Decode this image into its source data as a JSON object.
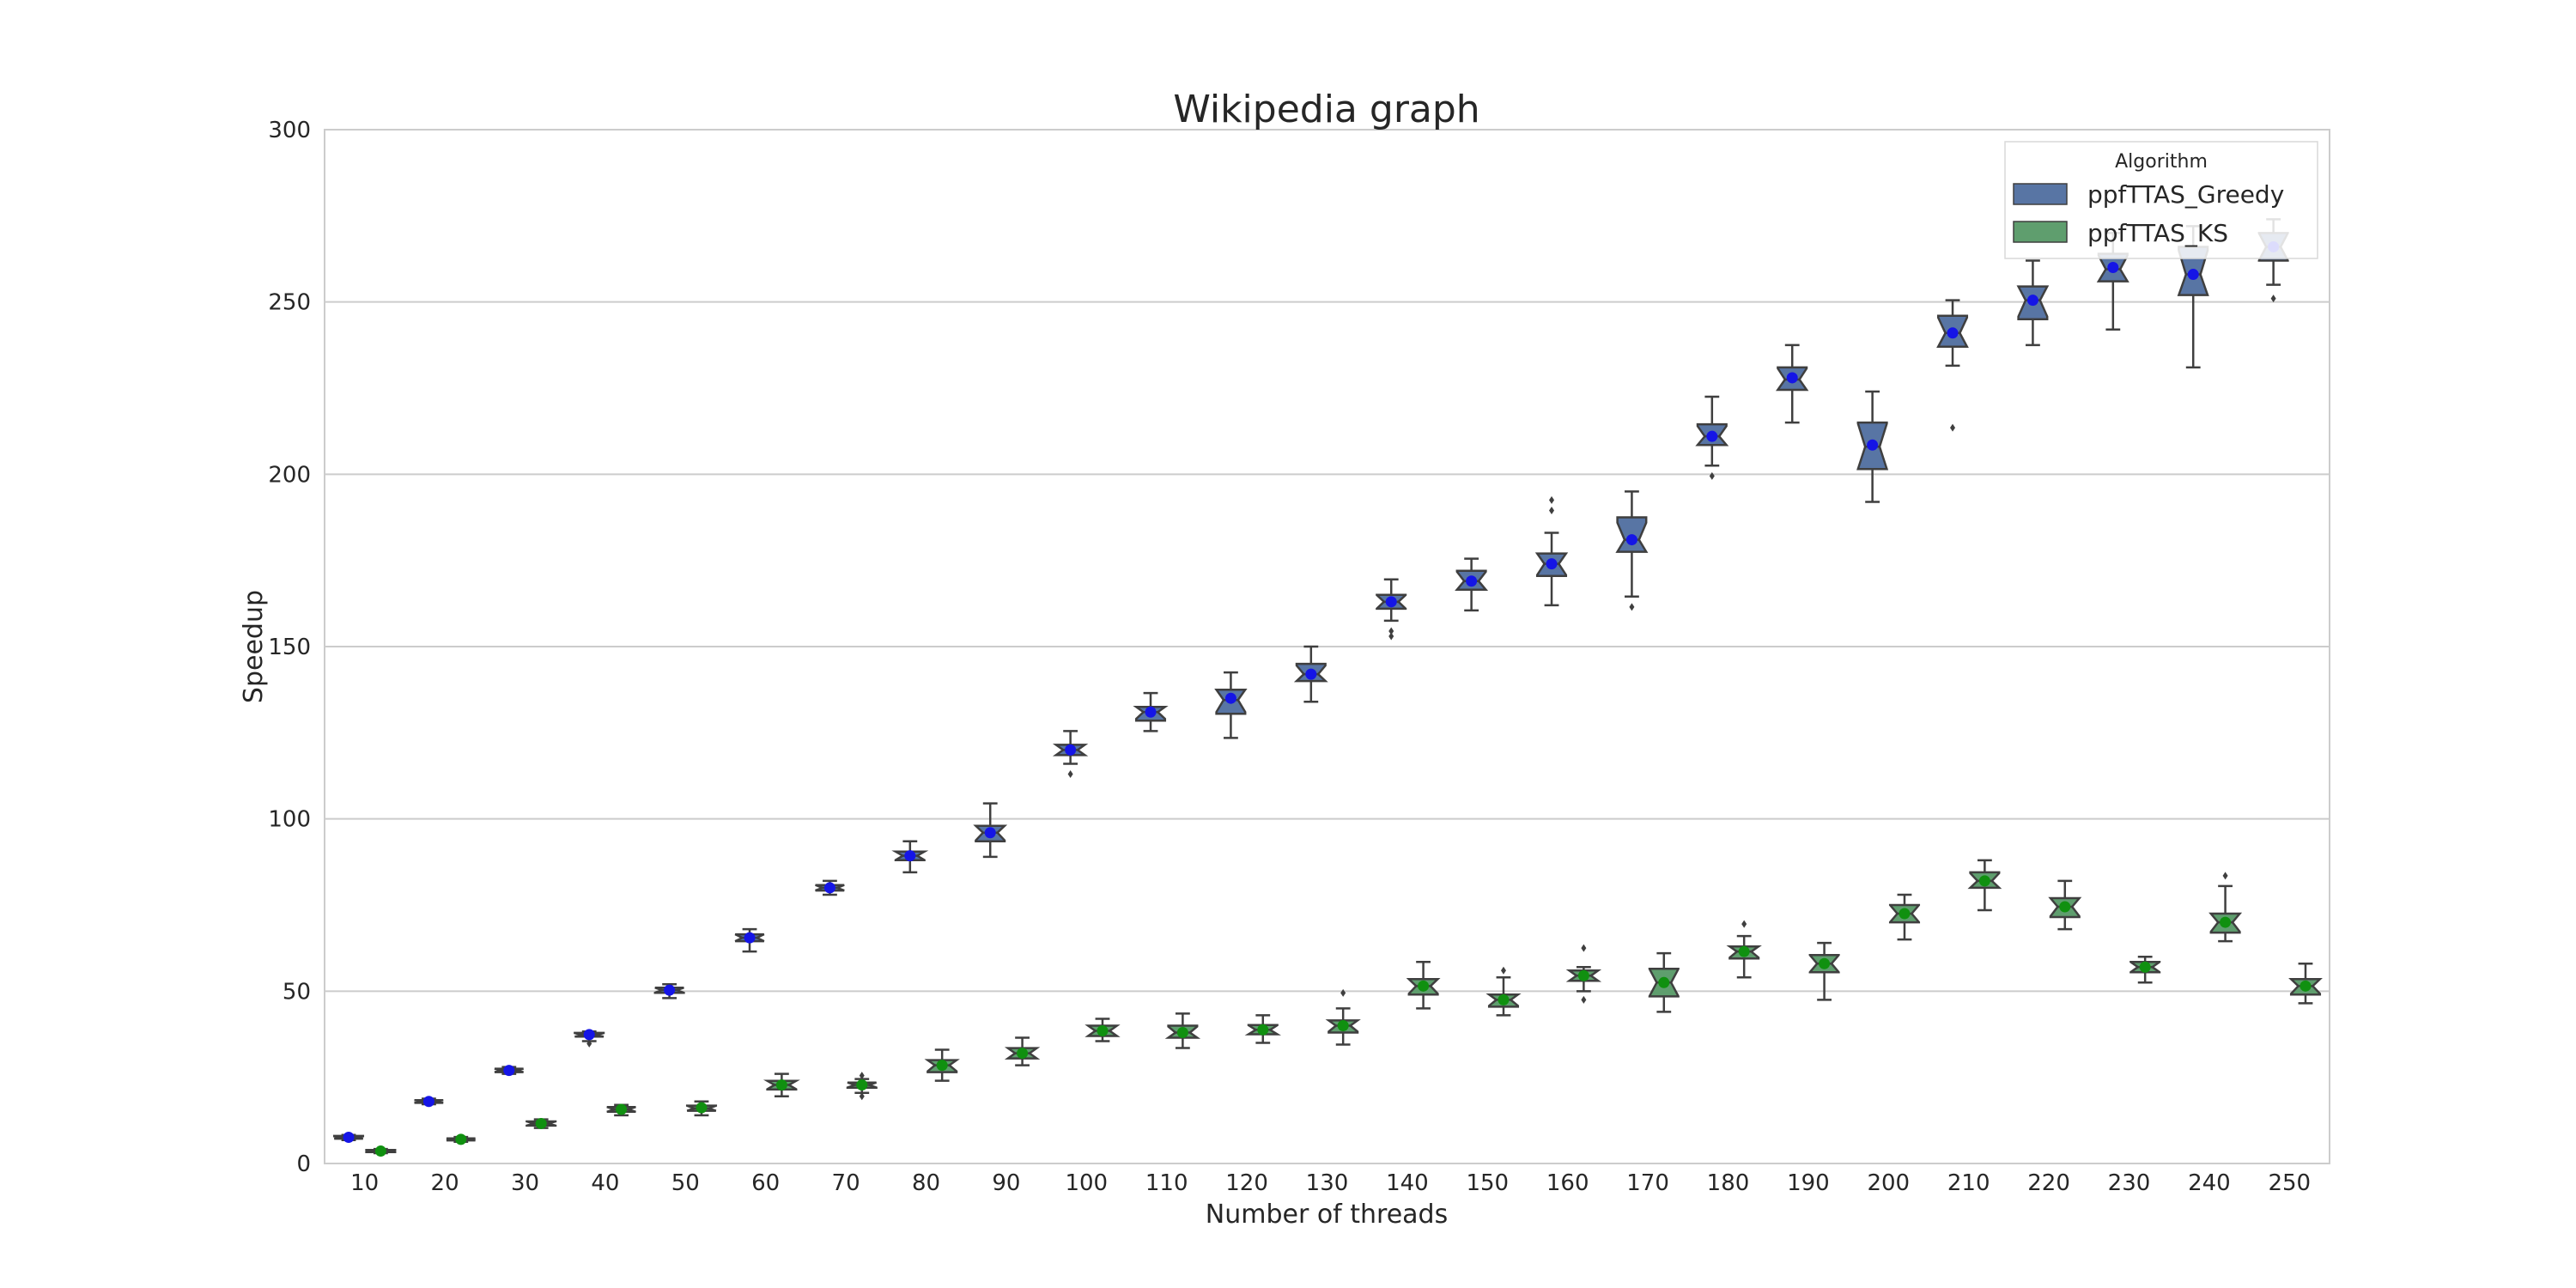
{
  "chart_data": {
    "type": "box",
    "title": "Wikipedia graph",
    "xlabel": "Number of threads",
    "ylabel": "Speedup",
    "ylim": [
      0,
      300
    ],
    "yticks": [
      0,
      50,
      100,
      150,
      200,
      250,
      300
    ],
    "grid": "horizontal",
    "legend": {
      "title": "Algorithm",
      "position": "top-right"
    },
    "categories": [
      "10",
      "20",
      "30",
      "40",
      "50",
      "60",
      "70",
      "80",
      "90",
      "100",
      "110",
      "120",
      "130",
      "140",
      "150",
      "160",
      "170",
      "180",
      "190",
      "200",
      "210",
      "220",
      "230",
      "240",
      "250"
    ],
    "series": [
      {
        "name": "ppfTTAS_Greedy",
        "color": "#5875a4",
        "mean_color": "#1515e6",
        "stats": [
          {
            "whislo": 6.8,
            "q1": 7.2,
            "med": 7.5,
            "q3": 8.0,
            "whishi": 8.3,
            "mean": 7.6,
            "fliers": []
          },
          {
            "whislo": 17.2,
            "q1": 17.6,
            "med": 18.0,
            "q3": 18.4,
            "whishi": 18.8,
            "mean": 18.0,
            "fliers": []
          },
          {
            "whislo": 26.0,
            "q1": 26.5,
            "med": 27.0,
            "q3": 27.5,
            "whishi": 28.0,
            "mean": 27.0,
            "fliers": []
          },
          {
            "whislo": 35.5,
            "q1": 36.8,
            "med": 37.3,
            "q3": 37.9,
            "whishi": 38.3,
            "mean": 37.4,
            "fliers": [
              34.8
            ]
          },
          {
            "whislo": 48.0,
            "q1": 49.5,
            "med": 50.3,
            "q3": 51.0,
            "whishi": 52.0,
            "mean": 50.3,
            "fliers": []
          },
          {
            "whislo": 61.5,
            "q1": 64.5,
            "med": 65.5,
            "q3": 66.5,
            "whishi": 68.0,
            "mean": 65.5,
            "fliers": []
          },
          {
            "whislo": 78.0,
            "q1": 79.2,
            "med": 80.0,
            "q3": 80.8,
            "whishi": 82.0,
            "mean": 80.0,
            "fliers": []
          },
          {
            "whislo": 84.5,
            "q1": 88.0,
            "med": 89.3,
            "q3": 90.5,
            "whishi": 93.5,
            "mean": 89.3,
            "fliers": []
          },
          {
            "whislo": 89.0,
            "q1": 93.5,
            "med": 96.0,
            "q3": 98.0,
            "whishi": 104.5,
            "mean": 96.0,
            "fliers": []
          },
          {
            "whislo": 116.0,
            "q1": 118.5,
            "med": 120.0,
            "q3": 121.5,
            "whishi": 125.5,
            "mean": 120.0,
            "fliers": [
              113.0
            ]
          },
          {
            "whislo": 125.5,
            "q1": 128.5,
            "med": 131.0,
            "q3": 132.5,
            "whishi": 136.5,
            "mean": 131.0,
            "fliers": []
          },
          {
            "whislo": 123.5,
            "q1": 130.5,
            "med": 134.5,
            "q3": 137.5,
            "whishi": 142.5,
            "mean": 135.0,
            "fliers": []
          },
          {
            "whislo": 134.0,
            "q1": 140.0,
            "med": 142.0,
            "q3": 145.0,
            "whishi": 150.0,
            "mean": 142.0,
            "fliers": []
          },
          {
            "whislo": 157.5,
            "q1": 161.0,
            "med": 163.0,
            "q3": 165.0,
            "whishi": 169.5,
            "mean": 163.0,
            "fliers": [
              153.0,
              154.5
            ]
          },
          {
            "whislo": 160.5,
            "q1": 166.5,
            "med": 169.0,
            "q3": 172.0,
            "whishi": 175.5,
            "mean": 169.0,
            "fliers": []
          },
          {
            "whislo": 162.0,
            "q1": 170.5,
            "med": 174.0,
            "q3": 177.0,
            "whishi": 183.0,
            "mean": 174.0,
            "fliers": [
              189.5,
              192.5
            ]
          },
          {
            "whislo": 164.5,
            "q1": 177.5,
            "med": 181.0,
            "q3": 187.5,
            "whishi": 195.0,
            "mean": 181.0,
            "fliers": [
              161.5
            ]
          },
          {
            "whislo": 202.5,
            "q1": 208.5,
            "med": 211.0,
            "q3": 214.5,
            "whishi": 222.5,
            "mean": 211.0,
            "fliers": [
              199.5
            ]
          },
          {
            "whislo": 215.0,
            "q1": 224.5,
            "med": 227.5,
            "q3": 231.0,
            "whishi": 237.5,
            "mean": 228.0,
            "fliers": []
          },
          {
            "whislo": 192.0,
            "q1": 201.5,
            "med": 208.0,
            "q3": 215.0,
            "whishi": 224.0,
            "mean": 208.5,
            "fliers": []
          },
          {
            "whislo": 231.5,
            "q1": 237.0,
            "med": 241.0,
            "q3": 246.0,
            "whishi": 250.5,
            "mean": 241.0,
            "fliers": [
              213.5
            ]
          },
          {
            "whislo": 237.5,
            "q1": 245.0,
            "med": 250.5,
            "q3": 254.5,
            "whishi": 262.0,
            "mean": 250.5,
            "fliers": []
          },
          {
            "whislo": 242.0,
            "q1": 256.0,
            "med": 259.5,
            "q3": 264.0,
            "whishi": 270.0,
            "mean": 260.0,
            "fliers": []
          },
          {
            "whislo": 231.0,
            "q1": 252.0,
            "med": 258.0,
            "q3": 266.0,
            "whishi": 272.0,
            "mean": 258.0,
            "fliers": []
          },
          {
            "whislo": 255.0,
            "q1": 262.0,
            "med": 266.0,
            "q3": 270.0,
            "whishi": 274.0,
            "mean": 266.0,
            "fliers": [
              251.0
            ]
          }
        ]
      },
      {
        "name": "ppfTTAS_KS",
        "color": "#5f9e6e",
        "mean_color": "#109010",
        "stats": [
          {
            "whislo": 3.0,
            "q1": 3.3,
            "med": 3.6,
            "q3": 3.9,
            "whishi": 4.2,
            "mean": 3.6,
            "fliers": []
          },
          {
            "whislo": 6.3,
            "q1": 6.7,
            "med": 7.0,
            "q3": 7.3,
            "whishi": 7.7,
            "mean": 7.0,
            "fliers": []
          },
          {
            "whislo": 10.3,
            "q1": 11.0,
            "med": 11.6,
            "q3": 12.2,
            "whishi": 12.8,
            "mean": 11.6,
            "fliers": []
          },
          {
            "whislo": 14.0,
            "q1": 15.0,
            "med": 15.7,
            "q3": 16.4,
            "whishi": 17.0,
            "mean": 15.7,
            "fliers": []
          },
          {
            "whislo": 14.0,
            "q1": 15.3,
            "med": 16.0,
            "q3": 16.8,
            "whishi": 18.0,
            "mean": 16.2,
            "fliers": []
          },
          {
            "whislo": 19.5,
            "q1": 21.5,
            "med": 22.8,
            "q3": 24.0,
            "whishi": 26.0,
            "mean": 22.8,
            "fliers": []
          },
          {
            "whislo": 20.5,
            "q1": 22.0,
            "med": 22.8,
            "q3": 23.5,
            "whishi": 24.5,
            "mean": 22.8,
            "fliers": [
              19.5,
              25.5
            ]
          },
          {
            "whislo": 24.0,
            "q1": 26.5,
            "med": 28.5,
            "q3": 30.0,
            "whishi": 33.0,
            "mean": 28.5,
            "fliers": []
          },
          {
            "whislo": 28.5,
            "q1": 30.5,
            "med": 32.0,
            "q3": 33.5,
            "whishi": 36.5,
            "mean": 32.0,
            "fliers": []
          },
          {
            "whislo": 35.5,
            "q1": 37.0,
            "med": 38.5,
            "q3": 40.0,
            "whishi": 42.0,
            "mean": 38.5,
            "fliers": []
          },
          {
            "whislo": 33.5,
            "q1": 36.5,
            "med": 38.0,
            "q3": 40.0,
            "whishi": 43.5,
            "mean": 38.0,
            "fliers": []
          },
          {
            "whislo": 35.0,
            "q1": 37.5,
            "med": 38.8,
            "q3": 40.2,
            "whishi": 43.0,
            "mean": 38.8,
            "fliers": []
          },
          {
            "whislo": 34.5,
            "q1": 38.0,
            "med": 40.0,
            "q3": 41.5,
            "whishi": 45.0,
            "mean": 40.0,
            "fliers": [
              49.5
            ]
          },
          {
            "whislo": 45.0,
            "q1": 49.0,
            "med": 51.5,
            "q3": 53.5,
            "whishi": 58.5,
            "mean": 51.5,
            "fliers": []
          },
          {
            "whislo": 43.0,
            "q1": 45.5,
            "med": 47.5,
            "q3": 49.0,
            "whishi": 54.0,
            "mean": 47.5,
            "fliers": [
              56.0
            ]
          },
          {
            "whislo": 50.0,
            "q1": 53.0,
            "med": 54.5,
            "q3": 56.0,
            "whishi": 57.0,
            "mean": 54.5,
            "fliers": [
              47.5,
              62.5
            ]
          },
          {
            "whislo": 44.0,
            "q1": 48.5,
            "med": 52.5,
            "q3": 56.5,
            "whishi": 61.0,
            "mean": 52.5,
            "fliers": []
          },
          {
            "whislo": 54.0,
            "q1": 59.5,
            "med": 61.5,
            "q3": 63.0,
            "whishi": 66.0,
            "mean": 61.5,
            "fliers": [
              69.5
            ]
          },
          {
            "whislo": 47.5,
            "q1": 55.5,
            "med": 58.0,
            "q3": 60.5,
            "whishi": 64.0,
            "mean": 58.0,
            "fliers": []
          },
          {
            "whislo": 65.0,
            "q1": 70.0,
            "med": 72.5,
            "q3": 75.0,
            "whishi": 78.0,
            "mean": 72.5,
            "fliers": []
          },
          {
            "whislo": 73.5,
            "q1": 80.0,
            "med": 82.0,
            "q3": 84.5,
            "whishi": 88.0,
            "mean": 82.0,
            "fliers": []
          },
          {
            "whislo": 68.0,
            "q1": 71.5,
            "med": 74.5,
            "q3": 77.0,
            "whishi": 82.0,
            "mean": 74.5,
            "fliers": []
          },
          {
            "whislo": 52.5,
            "q1": 55.5,
            "med": 57.0,
            "q3": 58.5,
            "whishi": 60.0,
            "mean": 57.0,
            "fliers": []
          },
          {
            "whislo": 64.5,
            "q1": 67.0,
            "med": 70.0,
            "q3": 72.5,
            "whishi": 80.5,
            "mean": 70.0,
            "fliers": [
              83.5
            ]
          },
          {
            "whislo": 46.5,
            "q1": 49.0,
            "med": 51.5,
            "q3": 53.5,
            "whishi": 58.0,
            "mean": 51.5,
            "fliers": []
          }
        ]
      }
    ]
  }
}
